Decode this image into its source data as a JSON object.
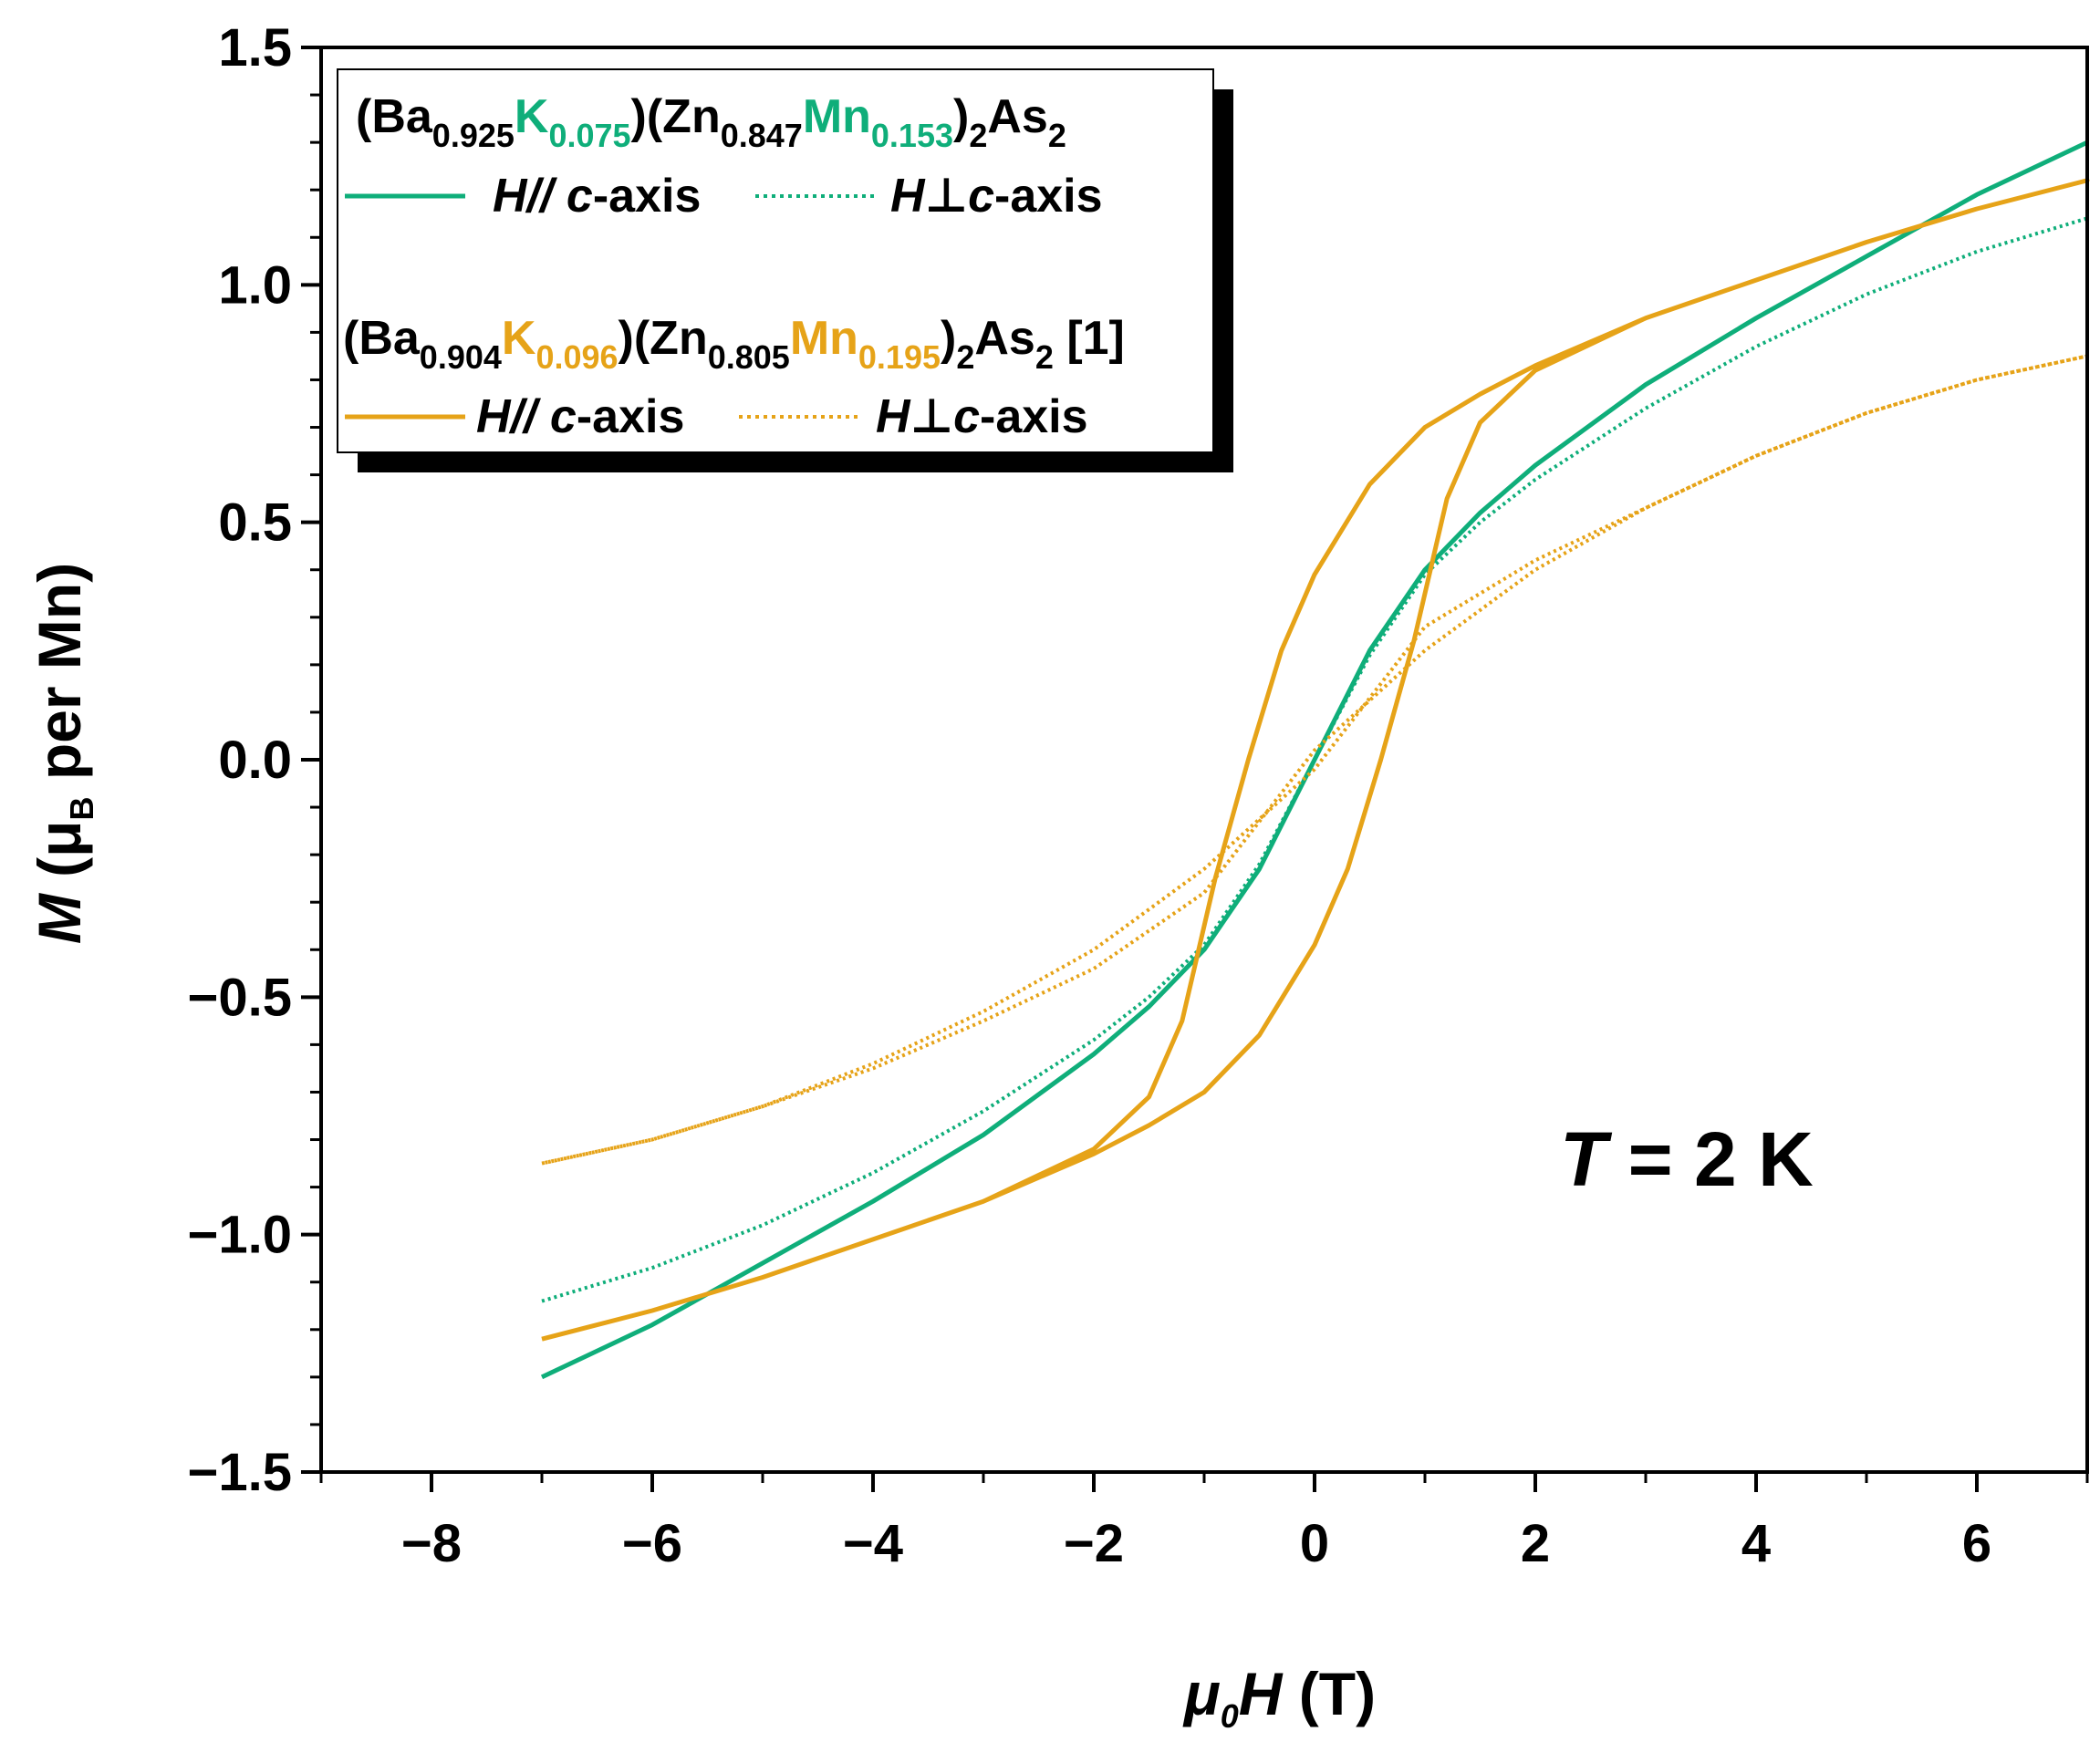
{
  "chart_data": {
    "type": "line",
    "xlabel": {
      "prefix": "μ",
      "prefix_sub": "0",
      "var": "H",
      "unit": " (T)"
    },
    "ylabel": {
      "var": "M",
      "open": " (μ",
      "sub": "B",
      "rest": " per Mn)"
    },
    "xlim": [
      -9,
      7
    ],
    "ylim": [
      -1.5,
      1.5
    ],
    "x_ticks": [
      -8,
      -6,
      -4,
      -2,
      0,
      2,
      4,
      6
    ],
    "x_tick_labels": [
      "−8",
      "−6",
      "−4",
      "−2",
      "0",
      "2",
      "4",
      "6"
    ],
    "y_ticks": [
      -1.5,
      -1.0,
      -0.5,
      0.0,
      0.5,
      1.0,
      1.5
    ],
    "y_tick_labels": [
      "−1.5",
      "−1.0",
      "−0.5",
      "0.0",
      "0.5",
      "1.0",
      "1.5"
    ],
    "annotation": {
      "var": "T",
      "text": " = 2 K"
    },
    "colors": {
      "green": "#0fae7a",
      "orange": "#e6a318",
      "black": "#000000"
    },
    "legend": {
      "groups": [
        {
          "color": "green",
          "formula": [
            {
              "t": "(Ba",
              "c": "black",
              "sub": false
            },
            {
              "t": "0.925",
              "c": "black",
              "sub": true
            },
            {
              "t": "K",
              "c": "green",
              "sub": false
            },
            {
              "t": "0.075",
              "c": "green",
              "sub": true
            },
            {
              "t": ")(Zn",
              "c": "black",
              "sub": false
            },
            {
              "t": "0.847",
              "c": "black",
              "sub": true
            },
            {
              "t": "Mn",
              "c": "green",
              "sub": false
            },
            {
              "t": "0.153",
              "c": "green",
              "sub": true
            },
            {
              "t": ")",
              "c": "black",
              "sub": false
            },
            {
              "t": "2",
              "c": "black",
              "sub": true
            },
            {
              "t": "As",
              "c": "black",
              "sub": false
            },
            {
              "t": "2",
              "c": "black",
              "sub": true
            }
          ]
        },
        {
          "color": "orange",
          "formula": [
            {
              "t": "(Ba",
              "c": "black",
              "sub": false
            },
            {
              "t": "0.904",
              "c": "black",
              "sub": true
            },
            {
              "t": "K",
              "c": "orange",
              "sub": false
            },
            {
              "t": "0.096",
              "c": "orange",
              "sub": true
            },
            {
              "t": ")(Zn",
              "c": "black",
              "sub": false
            },
            {
              "t": "0.805",
              "c": "black",
              "sub": true
            },
            {
              "t": "Mn",
              "c": "orange",
              "sub": false
            },
            {
              "t": "0.195",
              "c": "orange",
              "sub": true
            },
            {
              "t": ")",
              "c": "black",
              "sub": false
            },
            {
              "t": "2",
              "c": "black",
              "sub": true
            },
            {
              "t": "As",
              "c": "black",
              "sub": false
            },
            {
              "t": "2",
              "c": "black",
              "sub": true
            },
            {
              "t": " [1]",
              "c": "black",
              "sub": false
            }
          ]
        }
      ],
      "entry_parallel": {
        "var": "H",
        "sym": "//",
        "axis_var": "c",
        "rest": "-axis"
      },
      "entry_perp": {
        "var": "H",
        "sym": "⊥",
        "axis_var": "c",
        "rest": "-axis"
      }
    },
    "series": [
      {
        "name": "(Ba0.925K0.075)(Zn0.847Mn0.153)2As2 H//c-axis",
        "color": "green",
        "style": "solid",
        "points": [
          [
            -7.0,
            -1.3
          ],
          [
            -6.0,
            -1.19
          ],
          [
            -5.0,
            -1.06
          ],
          [
            -4.0,
            -0.93
          ],
          [
            -3.0,
            -0.79
          ],
          [
            -2.0,
            -0.62
          ],
          [
            -1.5,
            -0.52
          ],
          [
            -1.0,
            -0.4
          ],
          [
            -0.5,
            -0.23
          ],
          [
            0.0,
            0.0
          ],
          [
            0.5,
            0.23
          ],
          [
            1.0,
            0.4
          ],
          [
            1.5,
            0.52
          ],
          [
            2.0,
            0.62
          ],
          [
            3.0,
            0.79
          ],
          [
            4.0,
            0.93
          ],
          [
            5.0,
            1.06
          ],
          [
            6.0,
            1.19
          ],
          [
            7.0,
            1.3
          ]
        ]
      },
      {
        "name": "(Ba0.925K0.075)(Zn0.847Mn0.153)2As2 H⊥c-axis",
        "color": "green",
        "style": "dotted",
        "points": [
          [
            -7.0,
            -1.14
          ],
          [
            -6.0,
            -1.07
          ],
          [
            -5.0,
            -0.98
          ],
          [
            -4.0,
            -0.87
          ],
          [
            -3.0,
            -0.74
          ],
          [
            -2.0,
            -0.59
          ],
          [
            -1.5,
            -0.5
          ],
          [
            -1.0,
            -0.39
          ],
          [
            -0.5,
            -0.22
          ],
          [
            0.0,
            0.0
          ],
          [
            0.5,
            0.22
          ],
          [
            1.0,
            0.39
          ],
          [
            1.5,
            0.5
          ],
          [
            2.0,
            0.59
          ],
          [
            3.0,
            0.74
          ],
          [
            4.0,
            0.87
          ],
          [
            5.0,
            0.98
          ],
          [
            6.0,
            1.07
          ],
          [
            7.0,
            1.14
          ]
        ]
      },
      {
        "name": "(Ba0.904K0.096)(Zn0.805Mn0.195)2As2 [1] H//c-axis",
        "color": "orange",
        "style": "solid",
        "points": [
          [
            -7.0,
            -1.22
          ],
          [
            -6.0,
            -1.16
          ],
          [
            -5.0,
            -1.09
          ],
          [
            -4.0,
            -1.01
          ],
          [
            -3.0,
            -0.93
          ],
          [
            -2.0,
            -0.83
          ],
          [
            -1.5,
            -0.77
          ],
          [
            -1.0,
            -0.7
          ],
          [
            -0.5,
            -0.58
          ],
          [
            0.0,
            -0.39
          ],
          [
            0.3,
            -0.23
          ],
          [
            0.6,
            0.0
          ],
          [
            0.9,
            0.25
          ],
          [
            1.2,
            0.55
          ],
          [
            1.5,
            0.71
          ],
          [
            2.0,
            0.82
          ],
          [
            3.0,
            0.93
          ],
          [
            4.0,
            1.01
          ],
          [
            5.0,
            1.09
          ],
          [
            6.0,
            1.16
          ],
          [
            7.0,
            1.22
          ],
          [
            6.0,
            1.16
          ],
          [
            5.0,
            1.09
          ],
          [
            4.0,
            1.01
          ],
          [
            3.0,
            0.93
          ],
          [
            2.0,
            0.83
          ],
          [
            1.5,
            0.77
          ],
          [
            1.0,
            0.7
          ],
          [
            0.5,
            0.58
          ],
          [
            0.0,
            0.39
          ],
          [
            -0.3,
            0.23
          ],
          [
            -0.6,
            0.0
          ],
          [
            -0.9,
            -0.25
          ],
          [
            -1.2,
            -0.55
          ],
          [
            -1.5,
            -0.71
          ],
          [
            -2.0,
            -0.82
          ],
          [
            -3.0,
            -0.93
          ],
          [
            -4.0,
            -1.01
          ],
          [
            -5.0,
            -1.09
          ],
          [
            -6.0,
            -1.16
          ],
          [
            -7.0,
            -1.22
          ]
        ]
      },
      {
        "name": "(Ba0.904K0.096)(Zn0.805Mn0.195)2As2 [1] H⊥c-axis",
        "color": "orange",
        "style": "dotted",
        "points": [
          [
            -7.0,
            -0.85
          ],
          [
            -6.0,
            -0.8
          ],
          [
            -5.0,
            -0.73
          ],
          [
            -4.0,
            -0.65
          ],
          [
            -3.0,
            -0.55
          ],
          [
            -2.0,
            -0.44
          ],
          [
            -1.0,
            -0.28
          ],
          [
            0.0,
            0.02
          ],
          [
            1.0,
            0.23
          ],
          [
            2.0,
            0.4
          ],
          [
            3.0,
            0.53
          ],
          [
            4.0,
            0.64
          ],
          [
            5.0,
            0.73
          ],
          [
            6.0,
            0.8
          ],
          [
            7.0,
            0.85
          ],
          [
            6.0,
            0.8
          ],
          [
            5.0,
            0.73
          ],
          [
            4.0,
            0.64
          ],
          [
            3.0,
            0.53
          ],
          [
            2.0,
            0.42
          ],
          [
            1.0,
            0.28
          ],
          [
            0.0,
            -0.02
          ],
          [
            -1.0,
            -0.23
          ],
          [
            -2.0,
            -0.4
          ],
          [
            -3.0,
            -0.53
          ],
          [
            -4.0,
            -0.64
          ],
          [
            -5.0,
            -0.73
          ],
          [
            -6.0,
            -0.8
          ],
          [
            -7.0,
            -0.85
          ]
        ]
      }
    ]
  }
}
